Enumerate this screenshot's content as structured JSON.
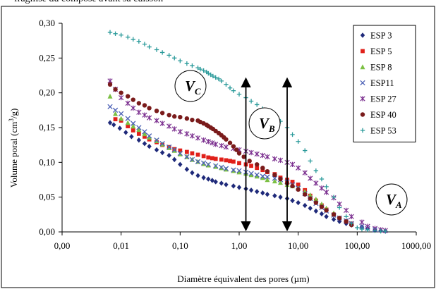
{
  "top_caption": "fragilisé du composé avant sa cuisson",
  "chart_data": {
    "type": "scatter",
    "title": "",
    "xlabel": "Diamètre équivalent des pores (µm)",
    "ylabel_main": "Volume poral (cm",
    "ylabel_sup": "3",
    "ylabel_end": "/g)",
    "xscale": "log",
    "xlim": [
      0.001,
      1000
    ],
    "ylim": [
      0,
      0.3
    ],
    "x_ticks": [
      0.001,
      0.01,
      0.1,
      1,
      10,
      100,
      1000
    ],
    "x_tick_labels": [
      "0,00",
      "0,01",
      "0,10",
      "1,00",
      "10,00",
      "100,00",
      "1000,00"
    ],
    "y_ticks": [
      0,
      0.05,
      0.1,
      0.15,
      0.2,
      0.25,
      0.3
    ],
    "y_tick_labels": [
      "0,00",
      "0,05",
      "0,10",
      "0,15",
      "0,20",
      "0,25",
      "0,30"
    ],
    "grid": false,
    "legend_position": "right",
    "series": [
      {
        "name": "ESP 3",
        "marker": "diamond",
        "color": "#1f2a7a",
        "x": [
          0.0065,
          0.0075,
          0.0095,
          0.012,
          0.015,
          0.02,
          0.025,
          0.03,
          0.04,
          0.05,
          0.065,
          0.08,
          0.1,
          0.13,
          0.16,
          0.2,
          0.25,
          0.3,
          0.35,
          0.4,
          0.5,
          0.6,
          0.8,
          1.0,
          1.3,
          1.6,
          2.0,
          2.5,
          3.0,
          4.0,
          5.0,
          6.5,
          8.0,
          10,
          13,
          16,
          20,
          25,
          30,
          40,
          50,
          65,
          80,
          120,
          150,
          200,
          250,
          300
        ],
        "y": [
          0.157,
          0.154,
          0.149,
          0.143,
          0.137,
          0.132,
          0.127,
          0.123,
          0.118,
          0.114,
          0.11,
          0.104,
          0.097,
          0.09,
          0.085,
          0.081,
          0.078,
          0.076,
          0.074,
          0.072,
          0.07,
          0.068,
          0.066,
          0.064,
          0.062,
          0.06,
          0.058,
          0.056,
          0.054,
          0.052,
          0.05,
          0.048,
          0.045,
          0.042,
          0.038,
          0.034,
          0.03,
          0.026,
          0.022,
          0.018,
          0.015,
          0.012,
          0.01,
          0.007,
          0.005,
          0.003,
          0.002,
          0.001
        ]
      },
      {
        "name": "ESP 5",
        "marker": "square",
        "color": "#e0201a",
        "x": [
          0.008,
          0.01,
          0.013,
          0.016,
          0.02,
          0.025,
          0.03,
          0.04,
          0.05,
          0.065,
          0.08,
          0.1,
          0.13,
          0.16,
          0.2,
          0.25,
          0.3,
          0.35,
          0.4,
          0.5,
          0.6,
          0.7,
          0.8,
          1.0,
          1.3,
          1.6,
          2.0,
          2.5,
          3.0,
          4.0,
          5.0,
          6.5,
          8.0,
          10,
          13,
          16,
          20,
          25,
          30,
          40,
          50,
          65,
          80
        ],
        "y": [
          0.162,
          0.16,
          0.152,
          0.146,
          0.141,
          0.137,
          0.133,
          0.129,
          0.125,
          0.122,
          0.119,
          0.117,
          0.115,
          0.113,
          0.111,
          0.109,
          0.107,
          0.106,
          0.105,
          0.104,
          0.103,
          0.102,
          0.101,
          0.099,
          0.097,
          0.095,
          0.092,
          0.089,
          0.086,
          0.083,
          0.078,
          0.075,
          0.072,
          0.068,
          0.06,
          0.052,
          0.045,
          0.038,
          0.032,
          0.025,
          0.02,
          0.015,
          0.012
        ]
      },
      {
        "name": "ESP 8",
        "marker": "triangle",
        "color": "#7cc043",
        "x": [
          0.0065,
          0.008,
          0.01,
          0.013,
          0.016,
          0.02,
          0.025,
          0.03,
          0.04,
          0.05,
          0.065,
          0.08,
          0.1,
          0.13,
          0.16,
          0.2,
          0.25,
          0.3,
          0.4,
          0.5,
          0.6,
          0.8,
          1.0,
          1.3,
          1.6,
          2.0,
          2.5,
          3.0,
          4.0,
          5.0,
          6.5,
          8.0,
          10,
          13,
          16,
          20,
          25,
          30,
          40
        ],
        "y": [
          0.195,
          0.17,
          0.163,
          0.157,
          0.152,
          0.147,
          0.141,
          0.136,
          0.131,
          0.126,
          0.121,
          0.117,
          0.112,
          0.108,
          0.104,
          0.101,
          0.098,
          0.096,
          0.094,
          0.092,
          0.09,
          0.088,
          0.086,
          0.084,
          0.082,
          0.08,
          0.078,
          0.075,
          0.073,
          0.071,
          0.068,
          0.066,
          0.063,
          0.058,
          0.053,
          0.047,
          0.04,
          0.034,
          0.027
        ]
      },
      {
        "name": "ESP11",
        "marker": "x",
        "color": "#4a5fb5",
        "x": [
          0.0065,
          0.008,
          0.01,
          0.013,
          0.016,
          0.02,
          0.025,
          0.03,
          0.04,
          0.05,
          0.065,
          0.08,
          0.1,
          0.13,
          0.16,
          0.2,
          0.25,
          0.3,
          0.4,
          0.5,
          0.6,
          0.8,
          1.0,
          1.3,
          1.6,
          2.0,
          2.5,
          3.0,
          4.0,
          5.0,
          6.5,
          8.0,
          10,
          13,
          16,
          20,
          25,
          30,
          40,
          50,
          65,
          80,
          120,
          150,
          200
        ],
        "y": [
          0.18,
          0.175,
          0.17,
          0.163,
          0.156,
          0.15,
          0.144,
          0.138,
          0.132,
          0.127,
          0.122,
          0.118,
          0.113,
          0.108,
          0.104,
          0.101,
          0.099,
          0.097,
          0.095,
          0.093,
          0.091,
          0.089,
          0.088,
          0.086,
          0.084,
          0.082,
          0.08,
          0.079,
          0.077,
          0.075,
          0.072,
          0.068,
          0.063,
          0.055,
          0.048,
          0.041,
          0.035,
          0.03,
          0.024,
          0.02,
          0.016,
          0.012,
          0.008,
          0.005,
          0.003
        ]
      },
      {
        "name": "ESP 27",
        "marker": "star",
        "color": "#7b2f8f",
        "x": [
          0.0065,
          0.008,
          0.01,
          0.013,
          0.016,
          0.02,
          0.025,
          0.03,
          0.04,
          0.05,
          0.065,
          0.08,
          0.1,
          0.13,
          0.16,
          0.2,
          0.25,
          0.3,
          0.35,
          0.4,
          0.5,
          0.6,
          0.8,
          1.0,
          1.3,
          1.6,
          2.0,
          2.5,
          3.0,
          4.0,
          5.0,
          6.5,
          8.0,
          10,
          13,
          16,
          20,
          25,
          30,
          40,
          50,
          65,
          80,
          120,
          150,
          200,
          250,
          300
        ],
        "y": [
          0.217,
          0.205,
          0.193,
          0.185,
          0.178,
          0.172,
          0.168,
          0.164,
          0.16,
          0.156,
          0.152,
          0.148,
          0.144,
          0.141,
          0.138,
          0.135,
          0.132,
          0.13,
          0.128,
          0.126,
          0.124,
          0.122,
          0.12,
          0.118,
          0.116,
          0.114,
          0.112,
          0.11,
          0.108,
          0.105,
          0.103,
          0.1,
          0.097,
          0.092,
          0.085,
          0.077,
          0.07,
          0.063,
          0.057,
          0.049,
          0.04,
          0.031,
          0.022,
          0.014,
          0.008,
          0.005,
          0.003,
          0.002
        ]
      },
      {
        "name": "ESP 40",
        "marker": "circle",
        "color": "#7a1b1b",
        "x": [
          0.0065,
          0.008,
          0.01,
          0.013,
          0.016,
          0.02,
          0.025,
          0.03,
          0.04,
          0.05,
          0.065,
          0.08,
          0.1,
          0.13,
          0.16,
          0.2,
          0.22,
          0.25,
          0.28,
          0.3,
          0.33,
          0.36,
          0.4,
          0.45,
          0.5,
          0.55,
          0.6,
          0.7,
          0.8,
          0.9,
          1.0,
          1.2,
          1.5,
          2.0,
          2.5,
          3.0,
          4.0,
          5.0,
          6.5,
          8.0,
          10,
          13,
          16,
          20,
          25,
          30,
          40,
          50,
          65,
          80
        ],
        "y": [
          0.212,
          0.205,
          0.2,
          0.195,
          0.19,
          0.185,
          0.182,
          0.178,
          0.174,
          0.171,
          0.168,
          0.166,
          0.165,
          0.163,
          0.161,
          0.16,
          0.158,
          0.156,
          0.154,
          0.152,
          0.15,
          0.148,
          0.145,
          0.142,
          0.139,
          0.136,
          0.133,
          0.128,
          0.123,
          0.118,
          0.113,
          0.108,
          0.102,
          0.097,
          0.092,
          0.087,
          0.082,
          0.076,
          0.07,
          0.066,
          0.061,
          0.054,
          0.048,
          0.042,
          0.036,
          0.031,
          0.025,
          0.02,
          0.015,
          0.01
        ]
      },
      {
        "name": "ESP 53",
        "marker": "plus",
        "color": "#2a9a9a",
        "x": [
          0.0065,
          0.008,
          0.01,
          0.013,
          0.016,
          0.02,
          0.025,
          0.03,
          0.04,
          0.05,
          0.065,
          0.08,
          0.1,
          0.13,
          0.16,
          0.2,
          0.22,
          0.25,
          0.28,
          0.3,
          0.33,
          0.36,
          0.4,
          0.45,
          0.5,
          0.6,
          0.7,
          0.8,
          1.0,
          1.3,
          1.6,
          2.0,
          2.5,
          3.0,
          4.0,
          5.0,
          6.5,
          8.0,
          10,
          13,
          16,
          20,
          25,
          30,
          40,
          50,
          65,
          80,
          100,
          120,
          150,
          200,
          250,
          300
        ],
        "y": [
          0.287,
          0.285,
          0.283,
          0.28,
          0.277,
          0.274,
          0.27,
          0.266,
          0.262,
          0.258,
          0.254,
          0.25,
          0.246,
          0.242,
          0.239,
          0.236,
          0.234,
          0.232,
          0.23,
          0.228,
          0.226,
          0.224,
          0.222,
          0.22,
          0.217,
          0.212,
          0.207,
          0.203,
          0.198,
          0.193,
          0.188,
          0.183,
          0.177,
          0.172,
          0.165,
          0.159,
          0.15,
          0.14,
          0.13,
          0.117,
          0.102,
          0.088,
          0.076,
          0.065,
          0.05,
          0.035,
          0.022,
          0.012,
          0.006,
          0.004,
          0.003,
          0.002,
          0.001,
          0.001
        ]
      }
    ],
    "annotations": {
      "vc_label": "V",
      "vc_sub": "C",
      "vb_label": "V",
      "vb_sub": "B",
      "va_label": "V",
      "va_sub": "A",
      "arrow1_x": 1.3,
      "arrow2_x": 6.5,
      "arrow_y_range": [
        0.0,
        0.215
      ]
    }
  }
}
